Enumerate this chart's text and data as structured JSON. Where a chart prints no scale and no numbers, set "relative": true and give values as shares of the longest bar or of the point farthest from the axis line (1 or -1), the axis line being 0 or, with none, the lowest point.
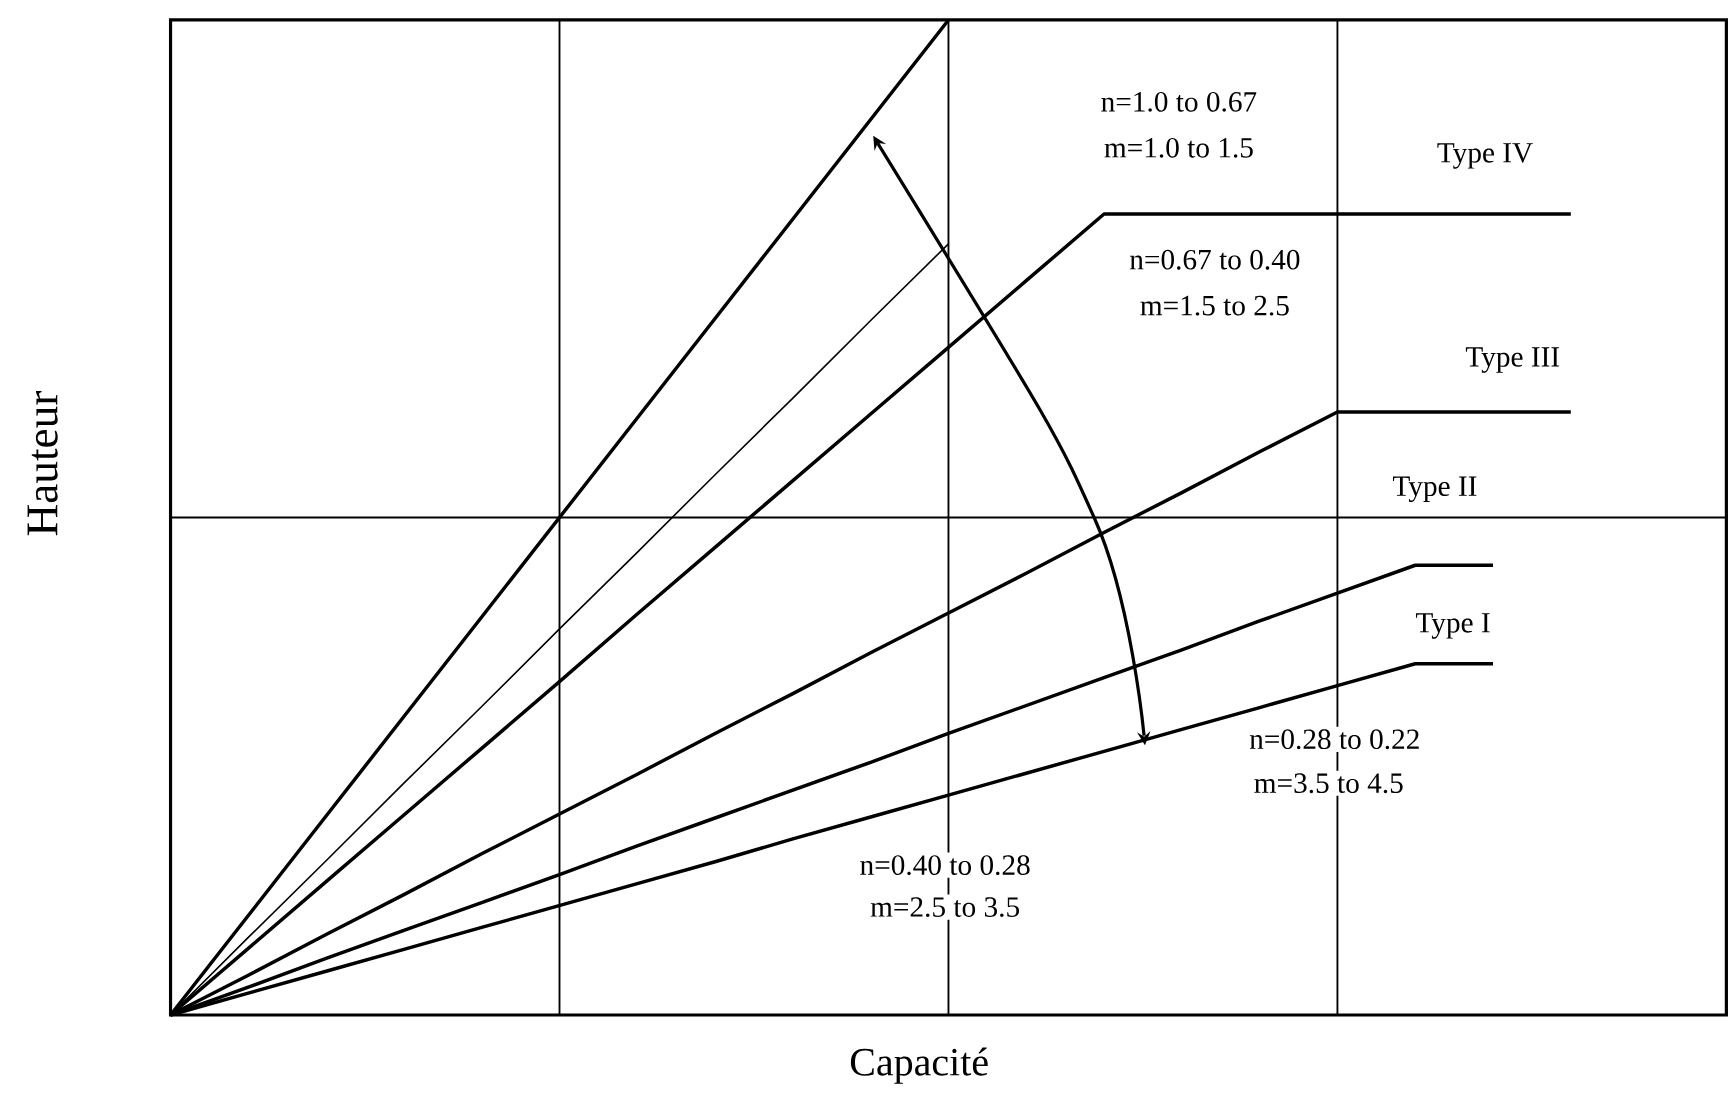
{
  "chart_data": {
    "type": "line",
    "relative": true,
    "xlabel": "Capacité",
    "ylabel": "Hauteur",
    "legend": false,
    "categories": [
      null,
      null,
      null,
      null,
      null,
      null,
      null,
      null,
      null,
      null,
      null,
      null,
      null,
      null,
      null,
      null,
      null,
      null,
      null,
      null,
      null
    ],
    "series": [
      {
        "color": "#000000",
        "values": [
          0,
          0.1,
          0.2,
          0.3,
          0.4,
          0.5,
          0.6,
          0.7,
          0.8,
          0.9,
          1.0,
          null,
          null,
          null,
          null,
          null,
          null,
          null,
          null,
          null,
          null
        ]
      },
      {
        "color": "#000000",
        "values": [
          0,
          0.078,
          0.155,
          0.233,
          0.31,
          0.388,
          0.465,
          0.543,
          0.62,
          0.698,
          0.775,
          null,
          null,
          null,
          null,
          null,
          null,
          null,
          null,
          null,
          null
        ]
      },
      {
        "name": "Type IV",
        "color": "#000000",
        "values": [
          0,
          0.067,
          0.134,
          0.201,
          0.268,
          0.335,
          0.403,
          0.47,
          0.537,
          0.604,
          0.671,
          0.738,
          0.805,
          0.805,
          0.805,
          0.805,
          0.805,
          0.805,
          0.805,
          null,
          null
        ]
      },
      {
        "name": "Type III",
        "color": "#000000",
        "values": [
          0,
          0.04,
          0.081,
          0.121,
          0.162,
          0.202,
          0.242,
          0.283,
          0.323,
          0.364,
          0.404,
          0.444,
          0.485,
          0.525,
          0.566,
          0.606,
          0.606,
          0.606,
          0.606,
          null,
          null
        ]
      },
      {
        "name": "Type II",
        "color": "#000000",
        "values": [
          0,
          0.028,
          0.057,
          0.085,
          0.113,
          0.141,
          0.17,
          0.198,
          0.226,
          0.254,
          0.283,
          0.311,
          0.339,
          0.367,
          0.396,
          0.424,
          0.452,
          0.452,
          null,
          null,
          null
        ]
      },
      {
        "name": "Type I",
        "color": "#000000",
        "values": [
          0,
          0.022,
          0.044,
          0.066,
          0.088,
          0.11,
          0.132,
          0.154,
          0.177,
          0.199,
          0.221,
          0.243,
          0.265,
          0.287,
          0.309,
          0.331,
          0.353,
          0.353,
          null,
          null,
          null
        ]
      }
    ],
    "grid": true,
    "annotations": [
      "n=1.0 to 0.67",
      "m=1.0 to 1.5",
      "n=0.67 to 0.40",
      "m=1.5 to 2.5",
      "n=0.28 to 0.22",
      "m=3.5 to 4.5",
      "n=0.40 to 0.28",
      "m=2.5 to 3.5"
    ]
  }
}
